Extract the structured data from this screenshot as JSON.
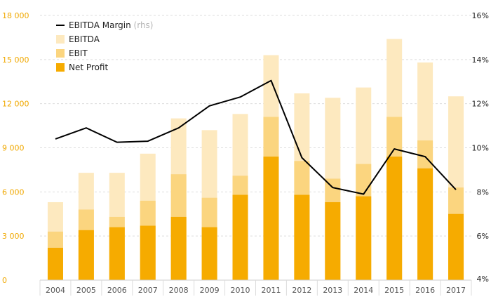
{
  "chart_data": {
    "type": "bar",
    "categories": [
      "2004",
      "2005",
      "2006",
      "2007",
      "2008",
      "2009",
      "2010",
      "2011",
      "2012",
      "2013",
      "2014",
      "2015",
      "2016",
      "2017"
    ],
    "series": [
      {
        "name": "EBITDA",
        "kind": "bar",
        "color": "#fde9bf",
        "values": [
          5300,
          7300,
          7300,
          8600,
          11000,
          10200,
          11300,
          15300,
          12700,
          12400,
          13100,
          16400,
          14800,
          12500
        ]
      },
      {
        "name": "EBIT",
        "kind": "bar",
        "color": "#fbd57f",
        "values": [
          3300,
          4800,
          4300,
          5400,
          7200,
          5600,
          7100,
          11100,
          8100,
          6900,
          7900,
          11100,
          9500,
          6300
        ]
      },
      {
        "name": "Net Profit",
        "kind": "bar",
        "color": "#f6ab00",
        "values": [
          2200,
          3400,
          3600,
          3700,
          4300,
          3600,
          5800,
          8400,
          5800,
          5300,
          5700,
          8400,
          7600,
          4500
        ]
      },
      {
        "name": "EBITDA Margin",
        "name_note": "(rhs)",
        "kind": "line",
        "axis": "right",
        "color": "#000000",
        "values": [
          10.4,
          10.9,
          10.25,
          10.3,
          10.9,
          11.9,
          12.3,
          13.05,
          9.55,
          8.2,
          7.9,
          9.95,
          9.6,
          8.1
        ]
      }
    ],
    "y_left": {
      "ylim": [
        0,
        18000
      ],
      "ticks": [
        0,
        3000,
        6000,
        9000,
        12000,
        15000,
        18000
      ],
      "tick_labels": [
        "0",
        "3 000",
        "6 000",
        "9 000",
        "12 000",
        "15 000",
        "18 000"
      ]
    },
    "y_right": {
      "ylim": [
        4,
        16
      ],
      "ticks": [
        4,
        6,
        8,
        10,
        12,
        14,
        16
      ],
      "tick_labels": [
        "4%",
        "6%",
        "8%",
        "10%",
        "12%",
        "14%",
        "16%"
      ]
    },
    "legend_position": "top-left",
    "grid": "horizontal, dashed"
  }
}
